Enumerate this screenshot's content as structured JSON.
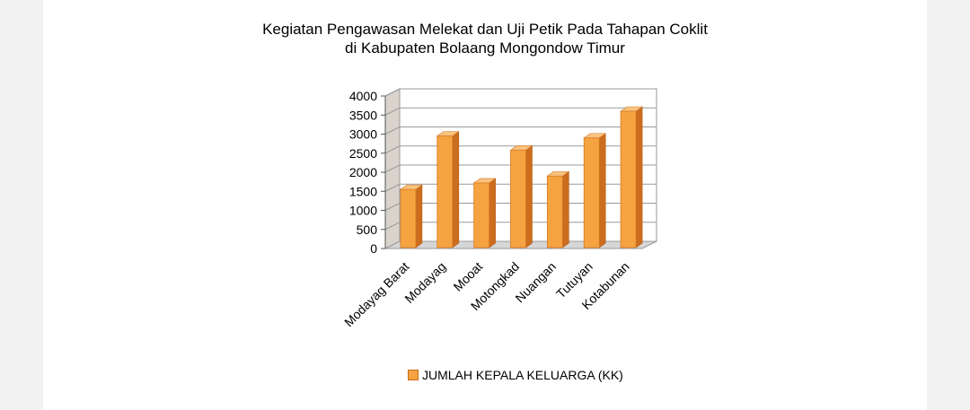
{
  "chart_data": {
    "type": "bar",
    "title_lines": [
      "Kegiatan Pengawasan Melekat dan Uji Petik Pada Tahapan Coklit",
      "di Kabupaten Bolaang Mongondow Timur"
    ],
    "categories": [
      "Modayag Barat",
      "Modayag",
      "Mooat",
      "Motongkad",
      "Nuangan",
      "Tutuyan",
      "Kotabunan"
    ],
    "series": [
      {
        "name": "JUMLAH KEPALA KELUARGA (KK)",
        "values": [
          1550,
          2950,
          1720,
          2580,
          1900,
          2900,
          3600
        ]
      }
    ],
    "ylim": [
      0,
      4000
    ],
    "yticks": [
      0,
      500,
      1000,
      1500,
      2000,
      2500,
      3000,
      3500,
      4000
    ],
    "grid": true,
    "legend_position": "bottom",
    "style": "3d-column",
    "colors": {
      "bar_front": "#f5a340",
      "bar_side": "#cc6d1e",
      "bar_top": "#f9c27e",
      "wall": "#d9d3cc",
      "floor": "#d6d6d6",
      "grid": "#9a9a9a"
    }
  }
}
